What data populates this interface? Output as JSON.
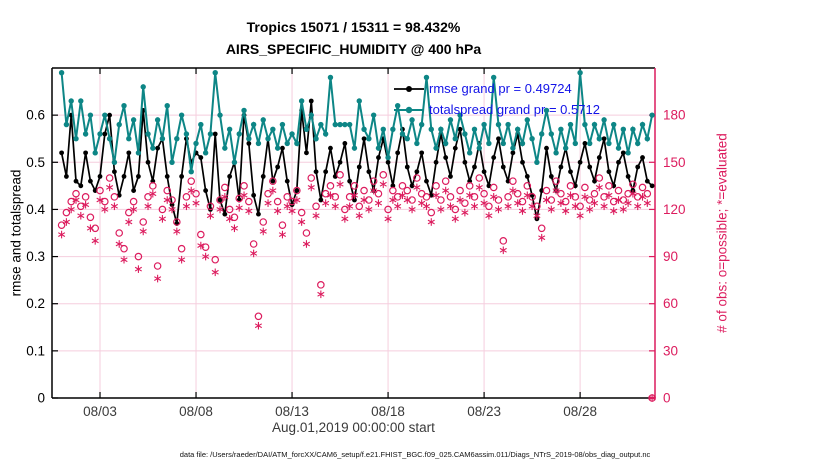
{
  "window": {
    "kind": "matlab-style-figure"
  },
  "footer": {
    "datafile": "data file: /Users/raeder/DAI/ATM_forcXX/CAM6_setup/f.e21.FHIST_BGC.f09_025.CAM6assim.011/Diags_NTrS_2019-08/obs_diag_output.nc"
  },
  "colors": {
    "rmse": "#000000",
    "totalspread": "#0d8686",
    "obs": "#dc1c5e",
    "legend_text": "#1212e8",
    "grid": "#f5cede",
    "x_tick_text": "#3a3a3a"
  },
  "chart_data": {
    "type": "line",
    "title": "Tropics 15071 / 15311 = 98.432%",
    "subtitle": "AIRS_SPECIFIC_HUMIDITY @ 400 hPa",
    "xlabel": "Aug.01,2019 00:00:00 start",
    "ylabel_left": "rmse and totalspread",
    "ylabel_right": "# of obs: o=possible; *=evaluated",
    "legend": [
      {
        "label": "rmse grand pr = 0.49724",
        "color": "#000000"
      },
      {
        "label": "totalspread grand pr = 0.5712",
        "color": "#0d8686"
      }
    ],
    "legend_position": "top-right-inside",
    "grid": true,
    "x_start_day": 0,
    "x_step_days": 0.25,
    "xlim_days": [
      -0.5,
      30.9
    ],
    "x_ticks": [
      {
        "day": 2,
        "label": "08/03"
      },
      {
        "day": 7,
        "label": "08/08"
      },
      {
        "day": 12,
        "label": "08/13"
      },
      {
        "day": 17,
        "label": "08/18"
      },
      {
        "day": 22,
        "label": "08/23"
      },
      {
        "day": 27,
        "label": "08/28"
      }
    ],
    "left_ylim": [
      0,
      0.7
    ],
    "left_ticks": [
      {
        "v": 0,
        "label": "0"
      },
      {
        "v": 0.1,
        "label": "0.1"
      },
      {
        "v": 0.2,
        "label": "0.2"
      },
      {
        "v": 0.3,
        "label": "0.3"
      },
      {
        "v": 0.4,
        "label": "0.4"
      },
      {
        "v": 0.5,
        "label": "0.5"
      },
      {
        "v": 0.6,
        "label": "0.6"
      }
    ],
    "right_ylim": [
      0,
      210
    ],
    "right_ticks": [
      {
        "v": 0,
        "label": "0"
      },
      {
        "v": 30,
        "label": "30"
      },
      {
        "v": 60,
        "label": "60"
      },
      {
        "v": 90,
        "label": "90"
      },
      {
        "v": 120,
        "label": "120"
      },
      {
        "v": 150,
        "label": "150"
      },
      {
        "v": 180,
        "label": "180"
      }
    ],
    "series": [
      {
        "name": "rmse",
        "axis": "left",
        "color": "#000000",
        "marker": "dot",
        "line": true,
        "values": [
          0.52,
          0.47,
          0.6,
          0.46,
          0.45,
          0.52,
          0.46,
          0.44,
          0.47,
          0.56,
          0.6,
          0.48,
          0.43,
          0.47,
          0.52,
          0.44,
          0.47,
          0.61,
          0.5,
          0.46,
          0.53,
          0.55,
          0.47,
          0.41,
          0.37,
          0.47,
          0.55,
          0.5,
          0.52,
          0.51,
          0.44,
          0.4,
          0.56,
          0.42,
          0.39,
          0.47,
          0.5,
          0.42,
          0.6,
          0.54,
          0.43,
          0.39,
          0.47,
          0.55,
          0.46,
          0.49,
          0.53,
          0.46,
          0.41,
          0.44,
          0.61,
          0.52,
          0.63,
          0.48,
          0.42,
          0.48,
          0.53,
          0.47,
          0.5,
          0.54,
          0.46,
          0.42,
          0.49,
          0.55,
          0.48,
          0.44,
          0.51,
          0.55,
          0.5,
          0.45,
          0.52,
          0.57,
          0.49,
          0.45,
          0.48,
          0.52,
          0.46,
          0.43,
          0.5,
          0.56,
          0.51,
          0.47,
          0.53,
          0.57,
          0.5,
          0.46,
          0.49,
          0.54,
          0.48,
          0.45,
          0.51,
          0.55,
          0.49,
          0.46,
          0.52,
          0.56,
          0.5,
          0.47,
          0.43,
          0.38,
          0.44,
          0.53,
          0.47,
          0.44,
          0.49,
          0.53,
          0.48,
          0.45,
          0.5,
          0.54,
          0.49,
          0.46,
          0.51,
          0.55,
          0.48,
          0.45,
          0.5,
          0.52,
          0.47,
          0.44,
          0.49,
          0.51,
          0.46,
          0.45
        ]
      },
      {
        "name": "totalspread",
        "axis": "left",
        "color": "#0d8686",
        "marker": "dot",
        "line": true,
        "values": [
          0.69,
          0.58,
          0.63,
          0.55,
          0.63,
          0.56,
          0.6,
          0.52,
          0.56,
          0.6,
          0.55,
          0.5,
          0.58,
          0.62,
          0.55,
          0.59,
          0.52,
          0.66,
          0.56,
          0.53,
          0.59,
          0.55,
          0.62,
          0.5,
          0.55,
          0.6,
          0.56,
          0.48,
          0.54,
          0.58,
          0.52,
          0.56,
          0.69,
          0.6,
          0.53,
          0.57,
          0.5,
          0.56,
          0.61,
          0.55,
          0.58,
          0.54,
          0.59,
          0.55,
          0.57,
          0.53,
          0.58,
          0.54,
          0.56,
          0.54,
          0.63,
          0.57,
          0.6,
          0.55,
          0.58,
          0.56,
          0.68,
          0.58,
          0.58,
          0.58,
          0.58,
          0.53,
          0.63,
          0.57,
          0.55,
          0.6,
          0.53,
          0.57,
          0.51,
          0.57,
          0.62,
          0.56,
          0.55,
          0.59,
          0.54,
          0.58,
          0.68,
          0.57,
          0.53,
          0.57,
          0.54,
          0.59,
          0.55,
          0.6,
          0.56,
          0.52,
          0.57,
          0.53,
          0.58,
          0.54,
          0.68,
          0.58,
          0.54,
          0.58,
          0.53,
          0.57,
          0.54,
          0.59,
          0.55,
          0.5,
          0.56,
          0.61,
          0.56,
          0.52,
          0.57,
          0.53,
          0.58,
          0.54,
          0.69,
          0.58,
          0.54,
          0.58,
          0.55,
          0.59,
          0.54,
          0.58,
          0.53,
          0.57,
          0.52,
          0.57,
          0.54,
          0.58,
          0.55,
          0.6
        ]
      },
      {
        "name": "possible_obs",
        "axis": "right",
        "color": "#dc1c5e",
        "marker": "open-circle",
        "line": false,
        "values": [
          110,
          118,
          125,
          130,
          122,
          128,
          115,
          108,
          132,
          125,
          140,
          128,
          105,
          95,
          118,
          125,
          90,
          112,
          128,
          135,
          84,
          120,
          132,
          126,
          112,
          95,
          128,
          138,
          130,
          104,
          96,
          122,
          88,
          126,
          134,
          120,
          115,
          127,
          135,
          125,
          98,
          52,
          112,
          130,
          138,
          125,
          110,
          128,
          125,
          132,
          118,
          105,
          140,
          122,
          72,
          130,
          135,
          128,
          142,
          120,
          128,
          135,
          122,
          132,
          126,
          138,
          130,
          142,
          120,
          132,
          128,
          135,
          132,
          126,
          140,
          130,
          128,
          118,
          135,
          126,
          138,
          128,
          120,
          132,
          124,
          135,
          128,
          140,
          130,
          122,
          134,
          126,
          100,
          128,
          138,
          130,
          125,
          135,
          128,
          122,
          108,
          132,
          126,
          138,
          130,
          125,
          135,
          128,
          122,
          134,
          126,
          130,
          140,
          128,
          135,
          125,
          132,
          126,
          130,
          136,
          128,
          134,
          130,
          0
        ]
      },
      {
        "name": "evaluated_obs",
        "axis": "right",
        "color": "#dc1c5e",
        "marker": "asterisk",
        "line": false,
        "values": [
          104,
          112,
          120,
          126,
          116,
          123,
          108,
          100,
          126,
          120,
          134,
          122,
          98,
          88,
          112,
          120,
          82,
          106,
          122,
          130,
          76,
          114,
          126,
          120,
          106,
          88,
          122,
          132,
          124,
          97,
          90,
          116,
          80,
          120,
          128,
          114,
          108,
          121,
          129,
          119,
          92,
          46,
          106,
          124,
          132,
          119,
          104,
          122,
          119,
          126,
          112,
          98,
          134,
          116,
          66,
          124,
          129,
          122,
          136,
          114,
          122,
          129,
          116,
          126,
          120,
          132,
          124,
          136,
          114,
          126,
          122,
          129,
          126,
          120,
          134,
          124,
          122,
          112,
          129,
          120,
          132,
          122,
          114,
          126,
          118,
          129,
          122,
          134,
          124,
          116,
          128,
          120,
          94,
          122,
          132,
          124,
          119,
          129,
          122,
          116,
          102,
          126,
          120,
          132,
          124,
          119,
          129,
          122,
          116,
          128,
          120,
          124,
          134,
          122,
          129,
          119,
          126,
          120,
          124,
          130,
          122,
          128,
          124,
          0
        ]
      }
    ]
  }
}
